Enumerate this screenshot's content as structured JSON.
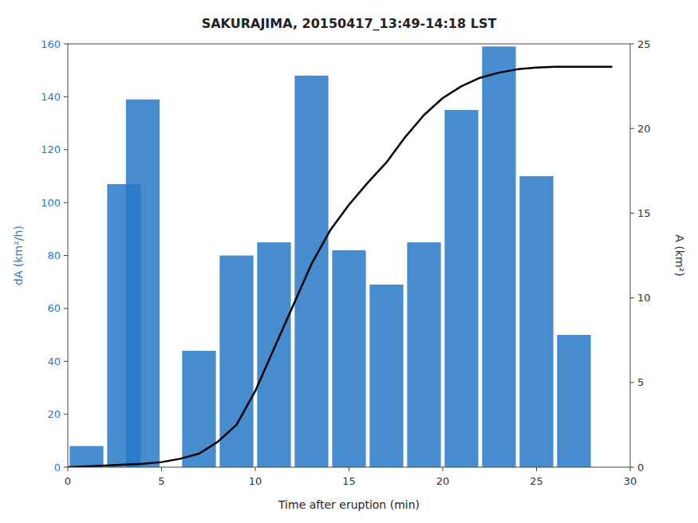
{
  "chart_data": {
    "type": "bar",
    "title": "SAKURAJIMA, 20150417_13:49-14:18 LST",
    "x_label": "Time after eruption (min)",
    "y_label": "dA (km²/h)",
    "y2_label": "A (km²)",
    "series": [
      {
        "type": "bar",
        "color": "#2878c8",
        "x": [
          1,
          3,
          4,
          7,
          9,
          11,
          13,
          15,
          17,
          19,
          21,
          23,
          25,
          27
        ],
        "values": [
          8,
          107,
          139,
          44,
          80,
          85,
          148,
          82,
          69,
          85,
          135,
          159,
          110,
          50
        ]
      },
      {
        "type": "line",
        "color": "#000000",
        "axis": "y2",
        "x": [
          0,
          1,
          2,
          3,
          4,
          5,
          6,
          7,
          8,
          9,
          10,
          11,
          12,
          13,
          14,
          15,
          16,
          17,
          18,
          19,
          20,
          21,
          22,
          23,
          24,
          25,
          26,
          27,
          28,
          29
        ],
        "values": [
          0,
          0.05,
          0.1,
          0.15,
          0.2,
          0.3,
          0.5,
          0.8,
          1.5,
          2.5,
          4.5,
          7.0,
          9.5,
          12.0,
          14.0,
          15.5,
          16.8,
          18.0,
          19.5,
          20.8,
          21.8,
          22.5,
          23.0,
          23.3,
          23.5,
          23.6,
          23.65,
          23.65,
          23.65,
          23.65
        ]
      }
    ],
    "xlim": [
      0,
      30
    ],
    "xticks": [
      0,
      5,
      10,
      15,
      20,
      25,
      30
    ],
    "ylim": [
      0,
      160
    ],
    "yticks": [
      0,
      20,
      40,
      60,
      80,
      100,
      120,
      140,
      160
    ],
    "y2lim": [
      0,
      25
    ],
    "y2ticks": [
      0,
      5,
      10,
      15,
      20,
      25
    ],
    "grid": false
  }
}
